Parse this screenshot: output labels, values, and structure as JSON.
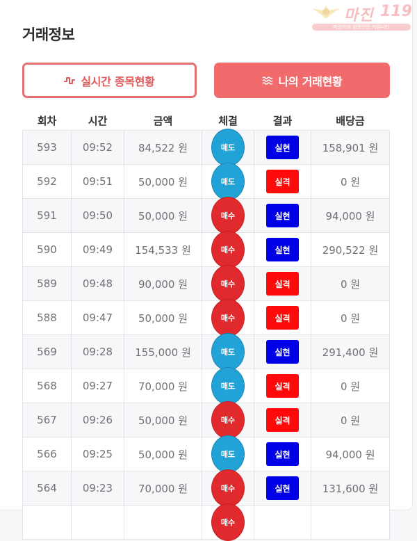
{
  "watermark": {
    "title": "마진",
    "number": "119",
    "tagline": "마진거래 검증전문 커뮤니티"
  },
  "header": {
    "title": "거래정보"
  },
  "tabs": [
    {
      "label": "실시간 종목현황",
      "icon": "pulse-wave-icon",
      "active": false
    },
    {
      "label": "나의 거래현황",
      "icon": "wavy-lines-icon",
      "active": true
    }
  ],
  "colors": {
    "accent": "#f26b6c",
    "sell": "#22a3d8",
    "buy": "#e12a2d",
    "win": "#0000e6",
    "lose": "#ff0a0a"
  },
  "table": {
    "headers": [
      "회차",
      "시간",
      "금액",
      "체결",
      "결과",
      "배당금"
    ],
    "rows": [
      {
        "round": "593",
        "time": "09:52",
        "amount": "84,522 원",
        "side": "매도",
        "result": "실현",
        "payout": "158,901 원"
      },
      {
        "round": "592",
        "time": "09:51",
        "amount": "50,000 원",
        "side": "매도",
        "result": "실격",
        "payout": "0 원"
      },
      {
        "round": "591",
        "time": "09:50",
        "amount": "50,000 원",
        "side": "매수",
        "result": "실현",
        "payout": "94,000 원"
      },
      {
        "round": "590",
        "time": "09:49",
        "amount": "154,533 원",
        "side": "매수",
        "result": "실현",
        "payout": "290,522 원"
      },
      {
        "round": "589",
        "time": "09:48",
        "amount": "90,000 원",
        "side": "매수",
        "result": "실격",
        "payout": "0 원"
      },
      {
        "round": "588",
        "time": "09:47",
        "amount": "50,000 원",
        "side": "매수",
        "result": "실격",
        "payout": "0 원"
      },
      {
        "round": "569",
        "time": "09:28",
        "amount": "155,000 원",
        "side": "매도",
        "result": "실현",
        "payout": "291,400 원"
      },
      {
        "round": "568",
        "time": "09:27",
        "amount": "70,000 원",
        "side": "매도",
        "result": "실격",
        "payout": "0 원"
      },
      {
        "round": "567",
        "time": "09:26",
        "amount": "50,000 원",
        "side": "매수",
        "result": "실격",
        "payout": "0 원"
      },
      {
        "round": "566",
        "time": "09:25",
        "amount": "50,000 원",
        "side": "매도",
        "result": "실현",
        "payout": "94,000 원"
      },
      {
        "round": "564",
        "time": "09:23",
        "amount": "70,000 원",
        "side": "매수",
        "result": "실현",
        "payout": "131,600 원"
      },
      {
        "round": "",
        "time": "",
        "amount": "",
        "side": "매수",
        "result": "",
        "payout": ""
      }
    ]
  }
}
